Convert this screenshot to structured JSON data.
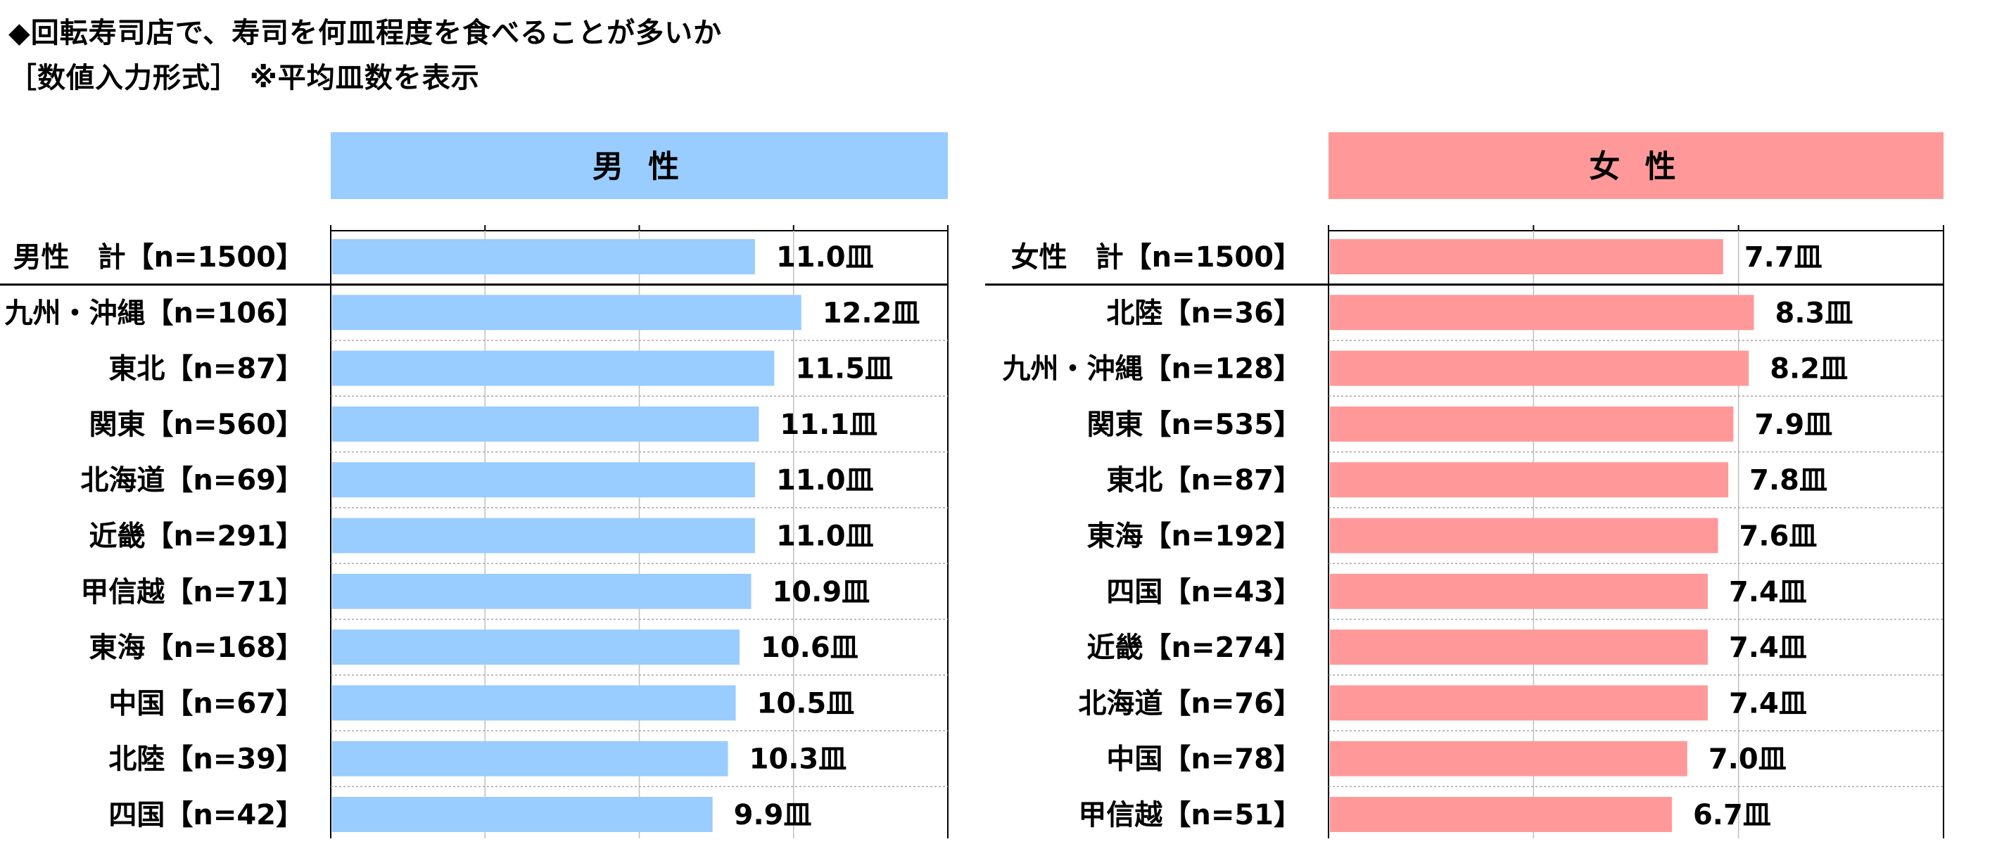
{
  "title_line1": "◆回転寿司店で、寿司を何皿程度を食べることが多いか",
  "title_line2": "［数値入力形式］ ※平均皿数を表示",
  "colors": {
    "male_bar": "#99ccff",
    "male_header": "#99ccff",
    "female_bar": "#ff9999",
    "female_header": "#ff9999",
    "grid": "#bfbfbf",
    "dotted_separator": "#a6a6a6",
    "axis": "#000000"
  },
  "chart_data": [
    {
      "type": "bar",
      "orientation": "horizontal",
      "header": "男 性",
      "unit_suffix": "皿",
      "xlim": [
        0,
        16
      ],
      "gridlines": [
        0,
        4,
        8,
        12,
        16
      ],
      "categories": [
        "男性　計【n=1500】",
        "九州・沖縄【n=106】",
        "東北【n=87】",
        "関東【n=560】",
        "北海道【n=69】",
        "近畿【n=291】",
        "甲信越【n=71】",
        "東海【n=168】",
        "中国【n=67】",
        "北陸【n=39】",
        "四国【n=42】"
      ],
      "values": [
        11.0,
        12.2,
        11.5,
        11.1,
        11.0,
        11.0,
        10.9,
        10.6,
        10.5,
        10.3,
        9.9
      ],
      "value_labels": [
        "11.0皿",
        "12.2皿",
        "11.5皿",
        "11.1皿",
        "11.0皿",
        "11.0皿",
        "10.9皿",
        "10.6皿",
        "10.5皿",
        "10.3皿",
        "9.9皿"
      ]
    },
    {
      "type": "bar",
      "orientation": "horizontal",
      "header": "女 性",
      "unit_suffix": "皿",
      "xlim": [
        0,
        12
      ],
      "gridlines": [
        0,
        4,
        8,
        12
      ],
      "categories": [
        "女性　計【n=1500】",
        "北陸【n=36】",
        "九州・沖縄【n=128】",
        "関東【n=535】",
        "東北【n=87】",
        "東海【n=192】",
        "四国【n=43】",
        "近畿【n=274】",
        "北海道【n=76】",
        "中国【n=78】",
        "甲信越【n=51】"
      ],
      "values": [
        7.7,
        8.3,
        8.2,
        7.9,
        7.8,
        7.6,
        7.4,
        7.4,
        7.4,
        7.0,
        6.7
      ],
      "value_labels": [
        "7.7皿",
        "8.3皿",
        "8.2皿",
        "7.9皿",
        "7.8皿",
        "7.6皿",
        "7.4皿",
        "7.4皿",
        "7.4皿",
        "7.0皿",
        "6.7皿"
      ]
    }
  ]
}
